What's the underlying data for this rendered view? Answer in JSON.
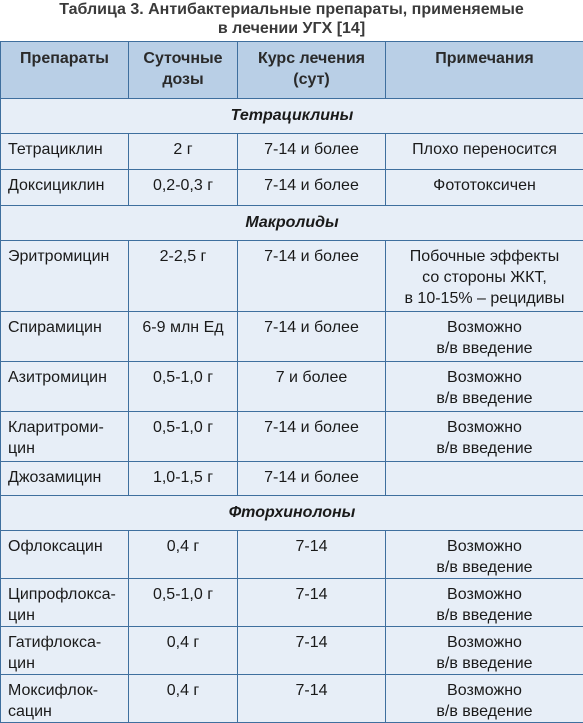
{
  "caption": "Таблица 3. Антибактериальные препараты, применяемые\nв лечении УГХ [14]",
  "headers": {
    "drug": "Препараты",
    "dose": "Суточные\nдозы",
    "course": "Курс лечения\n(сут)",
    "note": "Примечания"
  },
  "groups": [
    {
      "title": "Тетрациклины",
      "rows": [
        {
          "drug": "Тетрациклин",
          "dose": "2 г",
          "course": "7-14 и более",
          "note": "Плохо переносится"
        },
        {
          "drug": "Доксициклин",
          "dose": "0,2-0,3 г",
          "course": "7-14 и более",
          "note": "Фототоксичен"
        }
      ]
    },
    {
      "title": "Макролиды",
      "rows": [
        {
          "drug": "Эритромицин",
          "dose": "2-2,5 г",
          "course": "7-14 и более",
          "note": "Побочные эффекты\nсо стороны ЖКТ,\nв 10-15% – рецидивы"
        },
        {
          "drug": "Спирамицин",
          "dose": "6-9 млн Ед",
          "course": "7-14 и более",
          "note": "Возможно\nв/в введение"
        },
        {
          "drug": "Азитромицин",
          "dose": "0,5-1,0 г",
          "course": "7 и более",
          "note": "Возможно\nв/в введение"
        },
        {
          "drug": "Кларитроми-\nцин",
          "dose": "0,5-1,0 г",
          "course": "7-14 и более",
          "note": "Возможно\nв/в введение"
        },
        {
          "drug": "Джозамицин",
          "dose": "1,0-1,5 г",
          "course": "7-14 и более",
          "note": ""
        }
      ]
    },
    {
      "title": "Фторхинолоны",
      "rows": [
        {
          "drug": "Офлоксацин",
          "dose": "0,4 г",
          "course": "7-14",
          "note": "Возможно\nв/в введение"
        },
        {
          "drug": "Ципрофлокса-\nцин",
          "dose": "0,5-1,0 г",
          "course": "7-14",
          "note": "Возможно\nв/в введение"
        },
        {
          "drug": "Гатифлокса-\nцин",
          "dose": "0,4 г",
          "course": "7-14",
          "note": "Возможно\nв/в введение"
        },
        {
          "drug": "Моксифлок-\nсацин",
          "dose": "0,4 г",
          "course": "7-14",
          "note": "Возможно\nв/в введение"
        }
      ]
    }
  ]
}
